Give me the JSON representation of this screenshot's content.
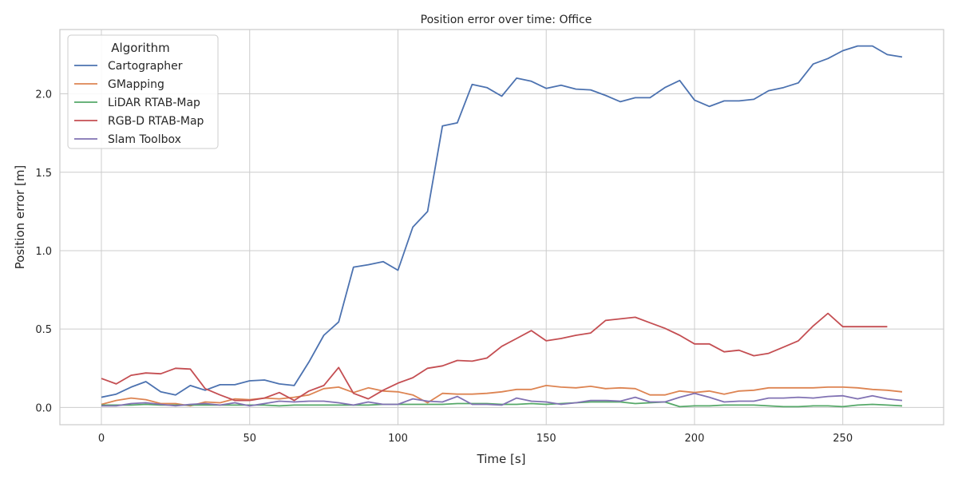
{
  "chart_data": {
    "type": "line",
    "title": "Position error over time: Office",
    "xlabel": "Time [s]",
    "ylabel": "Position error [m]",
    "xlim": [
      -14,
      284
    ],
    "ylim": [
      -0.11,
      2.41
    ],
    "xticks": [
      0,
      50,
      100,
      150,
      200,
      250
    ],
    "yticks": [
      0.0,
      0.5,
      1.0,
      1.5,
      2.0
    ],
    "xtick_labels": [
      "0",
      "50",
      "100",
      "150",
      "200",
      "250"
    ],
    "ytick_labels": [
      "0.0",
      "0.5",
      "1.0",
      "1.5",
      "2.0"
    ],
    "grid": true,
    "legend": {
      "title": "Algorithm",
      "placement": "top-left"
    },
    "series": [
      {
        "name": "Cartographer",
        "color": "#4c72b0",
        "x": [
          0,
          5,
          10,
          15,
          20,
          25,
          30,
          35,
          40,
          45,
          50,
          55,
          60,
          65,
          70,
          75,
          80,
          85,
          90,
          95,
          100,
          105,
          110,
          115,
          120,
          125,
          130,
          135,
          140,
          145,
          150,
          155,
          160,
          165,
          170,
          175,
          180,
          185,
          190,
          195,
          200,
          205,
          210,
          215,
          220,
          225,
          230,
          235,
          240,
          245,
          250,
          255,
          260,
          265,
          270
        ],
        "y": [
          0.065,
          0.085,
          0.13,
          0.165,
          0.1,
          0.08,
          0.14,
          0.11,
          0.145,
          0.145,
          0.17,
          0.175,
          0.15,
          0.14,
          0.29,
          0.46,
          0.545,
          0.895,
          0.91,
          0.93,
          0.875,
          1.15,
          1.25,
          1.795,
          1.815,
          2.06,
          2.04,
          1.985,
          2.1,
          2.08,
          2.035,
          2.055,
          2.03,
          2.025,
          1.99,
          1.95,
          1.975,
          1.975,
          2.04,
          2.085,
          1.96,
          1.92,
          1.955,
          1.955,
          1.965,
          2.02,
          2.04,
          2.07,
          2.19,
          2.225,
          2.275,
          2.305,
          2.305,
          2.25,
          2.235
        ]
      },
      {
        "name": "GMapping",
        "color": "#dd8452",
        "x": [
          0,
          5,
          10,
          15,
          20,
          25,
          30,
          35,
          40,
          45,
          50,
          55,
          60,
          65,
          70,
          75,
          80,
          85,
          90,
          95,
          100,
          105,
          110,
          115,
          120,
          125,
          130,
          135,
          140,
          145,
          150,
          155,
          160,
          165,
          170,
          175,
          180,
          185,
          190,
          195,
          200,
          205,
          210,
          215,
          220,
          225,
          230,
          235,
          240,
          245,
          250,
          255,
          260,
          265,
          270
        ],
        "y": [
          0.02,
          0.045,
          0.06,
          0.05,
          0.025,
          0.025,
          0.01,
          0.035,
          0.03,
          0.055,
          0.05,
          0.06,
          0.055,
          0.065,
          0.08,
          0.12,
          0.13,
          0.095,
          0.125,
          0.105,
          0.1,
          0.08,
          0.03,
          0.09,
          0.085,
          0.085,
          0.09,
          0.1,
          0.115,
          0.115,
          0.14,
          0.13,
          0.125,
          0.135,
          0.12,
          0.125,
          0.12,
          0.08,
          0.08,
          0.105,
          0.095,
          0.105,
          0.085,
          0.105,
          0.11,
          0.125,
          0.125,
          0.125,
          0.125,
          0.13,
          0.13,
          0.125,
          0.115,
          0.11,
          0.1
        ]
      },
      {
        "name": "LiDAR RTAB-Map",
        "color": "#55a868",
        "x": [
          0,
          5,
          10,
          15,
          20,
          25,
          30,
          35,
          40,
          45,
          50,
          55,
          60,
          65,
          70,
          75,
          80,
          85,
          90,
          95,
          100,
          105,
          110,
          115,
          120,
          125,
          130,
          135,
          140,
          145,
          150,
          155,
          160,
          165,
          170,
          175,
          180,
          185,
          190,
          195,
          200,
          205,
          210,
          215,
          220,
          225,
          230,
          235,
          240,
          245,
          250,
          255,
          260,
          265,
          270
        ],
        "y": [
          0.015,
          0.015,
          0.015,
          0.02,
          0.015,
          0.015,
          0.015,
          0.015,
          0.015,
          0.015,
          0.015,
          0.015,
          0.01,
          0.015,
          0.015,
          0.015,
          0.015,
          0.015,
          0.015,
          0.02,
          0.02,
          0.02,
          0.02,
          0.02,
          0.025,
          0.025,
          0.025,
          0.02,
          0.02,
          0.025,
          0.02,
          0.025,
          0.03,
          0.035,
          0.035,
          0.035,
          0.025,
          0.03,
          0.035,
          0.005,
          0.01,
          0.01,
          0.015,
          0.015,
          0.015,
          0.01,
          0.005,
          0.005,
          0.01,
          0.01,
          0.005,
          0.015,
          0.02,
          0.015,
          0.01
        ]
      },
      {
        "name": "RGB-D RTAB-Map",
        "color": "#c44e52",
        "x": [
          0,
          5,
          10,
          15,
          20,
          25,
          30,
          35,
          40,
          45,
          50,
          55,
          60,
          65,
          70,
          75,
          80,
          85,
          90,
          95,
          100,
          105,
          110,
          115,
          120,
          125,
          130,
          135,
          140,
          145,
          150,
          155,
          160,
          165,
          170,
          175,
          180,
          185,
          190,
          195,
          200,
          205,
          210,
          215,
          220,
          225,
          230,
          235,
          240,
          245,
          250,
          255,
          260,
          265
        ],
        "y": [
          0.185,
          0.15,
          0.205,
          0.22,
          0.215,
          0.25,
          0.245,
          0.12,
          0.08,
          0.045,
          0.045,
          0.06,
          0.095,
          0.045,
          0.105,
          0.14,
          0.255,
          0.09,
          0.055,
          0.11,
          0.155,
          0.19,
          0.25,
          0.265,
          0.3,
          0.295,
          0.315,
          0.39,
          0.44,
          0.49,
          0.425,
          0.44,
          0.46,
          0.475,
          0.555,
          0.565,
          0.575,
          0.54,
          0.505,
          0.46,
          0.405,
          0.405,
          0.355,
          0.365,
          0.33,
          0.345,
          0.385,
          0.425,
          0.52,
          0.6,
          0.515,
          0.515,
          0.515,
          0.515
        ]
      },
      {
        "name": "Slam Toolbox",
        "color": "#8172b3",
        "x": [
          0,
          5,
          10,
          15,
          20,
          25,
          30,
          35,
          40,
          45,
          50,
          55,
          60,
          65,
          70,
          75,
          80,
          85,
          90,
          95,
          100,
          105,
          110,
          115,
          120,
          125,
          130,
          135,
          140,
          145,
          150,
          155,
          160,
          165,
          170,
          175,
          180,
          185,
          190,
          195,
          200,
          205,
          210,
          215,
          220,
          225,
          230,
          235,
          240,
          245,
          250,
          255,
          260,
          265,
          270
        ],
        "y": [
          0.01,
          0.01,
          0.025,
          0.03,
          0.02,
          0.01,
          0.02,
          0.025,
          0.015,
          0.03,
          0.01,
          0.025,
          0.04,
          0.035,
          0.04,
          0.04,
          0.03,
          0.015,
          0.035,
          0.02,
          0.02,
          0.055,
          0.04,
          0.035,
          0.07,
          0.02,
          0.02,
          0.015,
          0.06,
          0.04,
          0.035,
          0.02,
          0.03,
          0.045,
          0.045,
          0.04,
          0.065,
          0.035,
          0.035,
          0.065,
          0.09,
          0.065,
          0.035,
          0.04,
          0.04,
          0.06,
          0.06,
          0.065,
          0.06,
          0.07,
          0.075,
          0.055,
          0.075,
          0.055,
          0.045
        ]
      }
    ]
  }
}
